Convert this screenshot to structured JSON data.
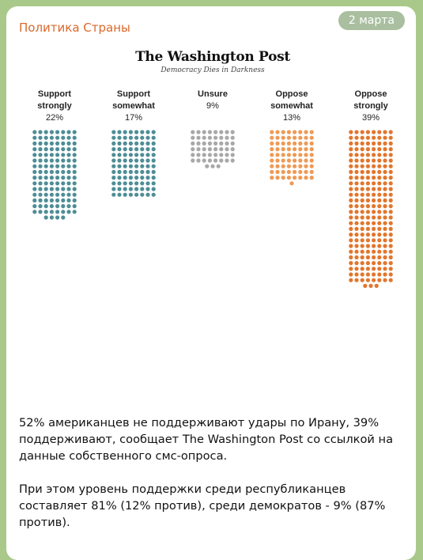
{
  "channel": {
    "name": "Политика Страны"
  },
  "message": {
    "date": "2 марта",
    "paragraphs": [
      "52% американцев не поддерживают удары по Ирану, 39% поддерживают, сообщает The Washington Post со ссылкой на данные собственного смс-опроса.",
      "При этом уровень поддержки среди республиканцев составляет 81% (12% против), среди демократов - 9% (87% против)."
    ]
  },
  "source": {
    "name": "The Washington Post",
    "tagline": "Democracy Dies in Darkness"
  },
  "chart_data": {
    "type": "waffle",
    "categories": [
      "Support strongly",
      "Support somewhat",
      "Unsure",
      "Oppose somewhat",
      "Oppose strongly"
    ],
    "labels": [
      [
        "Support",
        "strongly"
      ],
      [
        "Support",
        "somewhat"
      ],
      [
        "Unsure"
      ],
      [
        "Oppose",
        "somewhat"
      ],
      [
        "Oppose",
        "strongly"
      ]
    ],
    "values": [
      22,
      17,
      9,
      13,
      39
    ],
    "value_labels": [
      "22%",
      "17%",
      "9%",
      "13%",
      "39%"
    ],
    "colors": [
      "#4e8d96",
      "#4e8d96",
      "#a8a8a8",
      "#ee9a55",
      "#e2762d"
    ],
    "unit": "%",
    "grid": false,
    "legend": "none"
  }
}
